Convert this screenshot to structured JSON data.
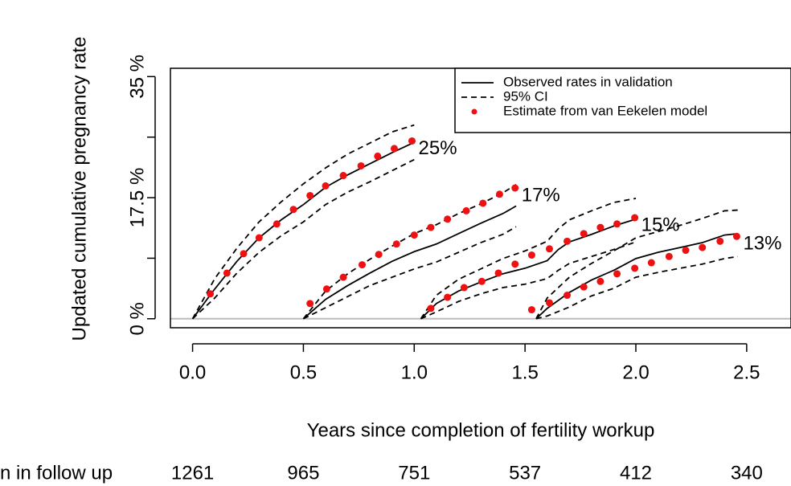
{
  "chart_data": {
    "type": "line",
    "ylabel": "Updated cumulative pregnancy rate",
    "xlabel": "Years since completion of fertility workup",
    "xlim": [
      -0.1,
      2.7
    ],
    "ylim": [
      -1.3,
      36.2
    ],
    "xticks": [
      {
        "value": 0,
        "label": "0.0"
      },
      0.5,
      {
        "value": 1,
        "label": "1.0"
      },
      1.5,
      {
        "value": 2,
        "label": "2.0"
      },
      2.5
    ],
    "yticks": [
      {
        "value": 0,
        "label": "0 %"
      },
      {
        "value": 17.5,
        "label": "17.5 %"
      },
      {
        "value": 35,
        "label": "35 %"
      }
    ],
    "yticks_unlabeled": [
      8.75,
      26.25
    ],
    "reference_line": 0,
    "line_color": "#000000",
    "estimate_color": "#ee1111",
    "legend_position": "topright",
    "legend": [
      {
        "name": "Observed rates in validation",
        "style": "solid"
      },
      {
        "name": "95% CI",
        "style": "dashed"
      },
      {
        "name": "Estimate from van Eekelen model",
        "style": "dot"
      }
    ],
    "groups": [
      {
        "label": "25%",
        "observed": {
          "x": [
            0,
            0.1,
            0.2,
            0.3,
            0.4,
            0.5,
            0.6,
            0.7,
            0.8,
            0.9,
            1.0
          ],
          "values": [
            0,
            4.3,
            8.3,
            11.7,
            14.3,
            16.5,
            19.0,
            20.8,
            22.4,
            24.0,
            25.5
          ]
        },
        "ci_upper": {
          "x": [
            0,
            0.1,
            0.2,
            0.3,
            0.4,
            0.5,
            0.6,
            0.7,
            0.8,
            0.9,
            1.0
          ],
          "values": [
            0,
            5.8,
            10.2,
            14.0,
            16.9,
            19.5,
            21.8,
            23.8,
            25.4,
            27.0,
            28.0
          ]
        },
        "ci_lower": {
          "x": [
            0,
            0.1,
            0.2,
            0.3,
            0.4,
            0.5,
            0.6,
            0.7,
            0.8,
            0.9,
            1.0
          ],
          "values": [
            0,
            3.0,
            6.6,
            9.6,
            12.0,
            14.0,
            16.5,
            18.3,
            19.8,
            21.4,
            23.0
          ]
        },
        "estimate": {
          "x": [
            0.08,
            0.155,
            0.23,
            0.3,
            0.38,
            0.455,
            0.53,
            0.6,
            0.68,
            0.76,
            0.835,
            0.91,
            0.99
          ],
          "values": [
            3.6,
            6.6,
            9.4,
            11.7,
            13.7,
            15.8,
            17.8,
            19.2,
            20.7,
            22.1,
            23.5,
            24.6,
            25.7
          ]
        }
      },
      {
        "label": "17%",
        "observed": {
          "x": [
            0.5,
            0.6,
            0.7,
            0.8,
            0.9,
            1.0,
            1.1,
            1.2,
            1.3,
            1.4,
            1.46
          ],
          "values": [
            0,
            2.8,
            4.8,
            6.6,
            8.3,
            9.7,
            10.8,
            12.3,
            13.8,
            15.2,
            16.3
          ]
        },
        "ci_upper": {
          "x": [
            0.5,
            0.6,
            0.7,
            0.8,
            0.9,
            1.0,
            1.1,
            1.2,
            1.3,
            1.4,
            1.46
          ],
          "values": [
            0,
            4.0,
            6.5,
            8.6,
            10.5,
            12.3,
            13.6,
            15.2,
            16.6,
            18.2,
            19.4
          ]
        },
        "ci_lower": {
          "x": [
            0.5,
            0.6,
            0.7,
            0.8,
            0.9,
            1.0,
            1.1,
            1.2,
            1.3,
            1.4,
            1.46
          ],
          "values": [
            0,
            1.6,
            3.2,
            4.8,
            6.0,
            7.2,
            8.2,
            9.6,
            11.0,
            12.2,
            13.3
          ]
        },
        "estimate": {
          "x": [
            0.53,
            0.605,
            0.68,
            0.765,
            0.84,
            0.92,
            1.0,
            1.075,
            1.15,
            1.235,
            1.31,
            1.385,
            1.455
          ],
          "values": [
            2.2,
            4.3,
            6.0,
            7.8,
            9.3,
            10.8,
            12.1,
            13.2,
            14.4,
            15.6,
            16.7,
            18.0,
            18.9
          ]
        }
      },
      {
        "label": "15%",
        "observed": {
          "x": [
            1.03,
            1.1,
            1.2,
            1.3,
            1.4,
            1.5,
            1.6,
            1.65,
            1.7,
            1.8,
            1.9,
            2.0
          ],
          "values": [
            0,
            2.2,
            4.0,
            5.3,
            6.5,
            7.3,
            8.4,
            10.0,
            11.1,
            12.2,
            13.4,
            14.4
          ]
        },
        "ci_upper": {
          "x": [
            1.03,
            1.1,
            1.2,
            1.3,
            1.4,
            1.5,
            1.6,
            1.65,
            1.7,
            1.8,
            1.9,
            2.0
          ],
          "values": [
            0,
            3.4,
            5.7,
            7.2,
            8.7,
            9.8,
            11.2,
            13.0,
            14.3,
            15.6,
            16.8,
            17.4
          ]
        },
        "ci_lower": {
          "x": [
            1.03,
            1.1,
            1.2,
            1.3,
            1.4,
            1.5,
            1.6,
            1.65,
            1.7,
            1.8,
            1.9,
            2.0
          ],
          "values": [
            0,
            1.0,
            2.5,
            3.6,
            4.5,
            5.0,
            5.8,
            7.0,
            8.0,
            9.0,
            10.0,
            11.1
          ]
        },
        "estimate": {
          "x": [
            1.075,
            1.15,
            1.225,
            1.305,
            1.38,
            1.455,
            1.53,
            1.61,
            1.69,
            1.765,
            1.84,
            1.915,
            1.995
          ],
          "values": [
            1.5,
            3.1,
            4.5,
            5.4,
            6.6,
            7.9,
            9.2,
            10.1,
            11.2,
            12.3,
            13.2,
            13.7,
            14.6
          ]
        }
      },
      {
        "label": "13%",
        "observed": {
          "x": [
            1.55,
            1.6,
            1.7,
            1.8,
            1.9,
            2.0,
            2.1,
            2.2,
            2.3,
            2.4,
            2.46
          ],
          "values": [
            0,
            1.5,
            3.8,
            5.6,
            7.0,
            8.7,
            9.6,
            10.3,
            11.0,
            12.1,
            12.3
          ]
        },
        "ci_upper": {
          "x": [
            1.55,
            1.6,
            1.7,
            1.8,
            1.9,
            2.0,
            2.1,
            2.2,
            2.3,
            2.4,
            2.46
          ],
          "values": [
            0,
            3.0,
            6.0,
            8.0,
            9.8,
            11.7,
            12.6,
            13.5,
            14.5,
            15.6,
            15.7
          ]
        },
        "ci_lower": {
          "x": [
            1.55,
            1.6,
            1.7,
            1.8,
            1.9,
            2.0,
            2.1,
            2.2,
            2.3,
            2.4,
            2.46
          ],
          "values": [
            0,
            0.4,
            1.7,
            3.3,
            4.4,
            6.0,
            6.7,
            7.3,
            7.9,
            8.7,
            9.0
          ]
        },
        "estimate": {
          "x": [
            1.53,
            1.61,
            1.69,
            1.765,
            1.84,
            1.915,
            1.995,
            2.07,
            2.15,
            2.225,
            2.3,
            2.38,
            2.455
          ],
          "values": [
            1.3,
            2.3,
            3.4,
            4.6,
            5.4,
            6.5,
            7.3,
            8.1,
            9.0,
            9.9,
            10.3,
            11.2,
            11.9
          ]
        }
      }
    ],
    "risk_table": {
      "label": "n in follow up",
      "x": [
        0,
        0.5,
        1,
        1.5,
        2,
        2.5
      ],
      "values": [
        1261,
        965,
        751,
        537,
        412,
        340
      ]
    }
  }
}
